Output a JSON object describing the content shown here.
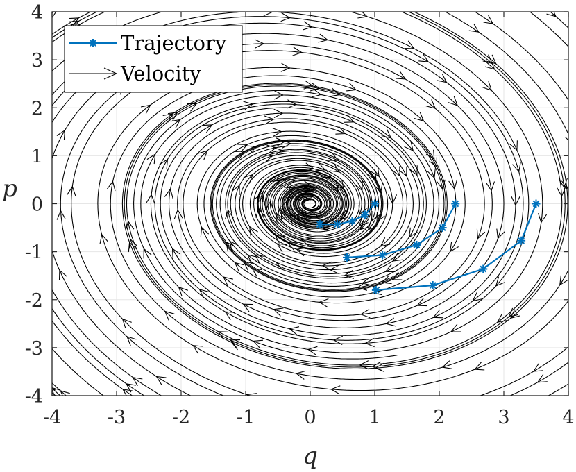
{
  "chart_data": {
    "type": "line",
    "title": "",
    "xlabel": "q",
    "ylabel": "p",
    "xlim": [
      -4,
      4
    ],
    "ylim": [
      -4,
      4
    ],
    "x_ticks": [
      "-4",
      "-3",
      "-2",
      "-1",
      "0",
      "1",
      "2",
      "3",
      "4"
    ],
    "y_ticks": [
      "-4",
      "-3",
      "-2",
      "-1",
      "0",
      "1",
      "2",
      "3",
      "4"
    ],
    "grid": true,
    "legend": {
      "position": "top-left",
      "entries": [
        "Trajectory",
        "Velocity"
      ]
    },
    "series": [
      {
        "name": "Trajectory",
        "color": "#0072BD",
        "marker": "asterisk",
        "runs": [
          [
            [
              1.0,
              0.0
            ],
            [
              0.85,
              -0.23
            ],
            [
              0.65,
              -0.36
            ],
            [
              0.42,
              -0.43
            ],
            [
              0.15,
              -0.43
            ]
          ],
          [
            [
              2.25,
              0.0
            ],
            [
              2.05,
              -0.5
            ],
            [
              1.65,
              -0.86
            ],
            [
              1.12,
              -1.07
            ],
            [
              0.57,
              -1.12
            ]
          ],
          [
            [
              3.5,
              0.0
            ],
            [
              3.27,
              -0.77
            ],
            [
              2.68,
              -1.36
            ],
            [
              1.9,
              -1.7
            ],
            [
              1.02,
              -1.8
            ]
          ]
        ]
      },
      {
        "name": "Velocity",
        "color": "#000000",
        "kind": "streamlines",
        "field": {
          "dq": "p",
          "dp": "-q - 0.2*p"
        },
        "seeds_q": [
          0.3,
          0.6,
          0.9,
          1.2,
          1.5,
          1.8,
          2.1,
          2.4,
          2.7,
          3.0,
          3.3,
          3.6,
          3.9
        ]
      }
    ]
  }
}
